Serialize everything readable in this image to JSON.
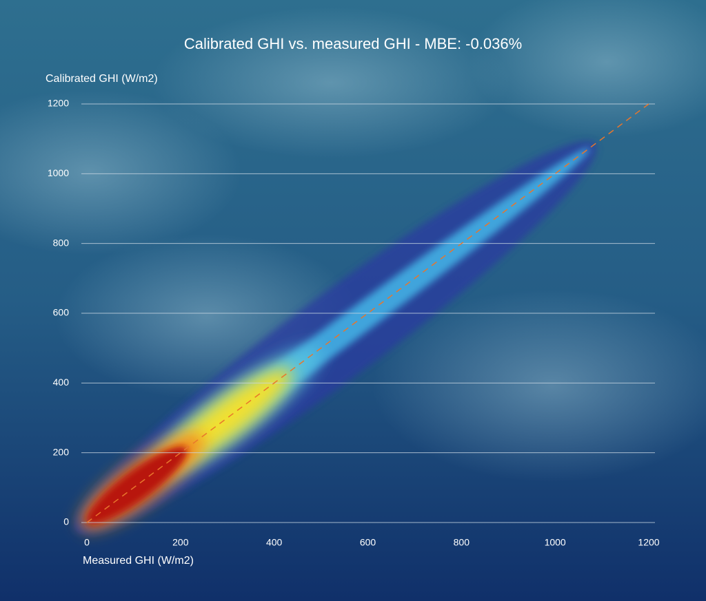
{
  "chart_data": {
    "type": "scatter",
    "title": "Calibrated GHI vs. measured GHI - MBE: -0.036%",
    "y_label": "Calibrated GHI (W/m2)",
    "x_label": "Measured GHI (W/m2)",
    "xlim": [
      0,
      1200
    ],
    "ylim": [
      0,
      1200
    ],
    "xticks": [
      0,
      200,
      400,
      600,
      800,
      1000,
      1200
    ],
    "yticks": [
      0,
      200,
      400,
      600,
      800,
      1000,
      1200
    ],
    "grid": true,
    "series": [
      {
        "name": "1:1 line",
        "color": "#e8762c",
        "x": [
          0,
          1200
        ],
        "values": [
          0,
          1200
        ]
      }
    ]
  }
}
